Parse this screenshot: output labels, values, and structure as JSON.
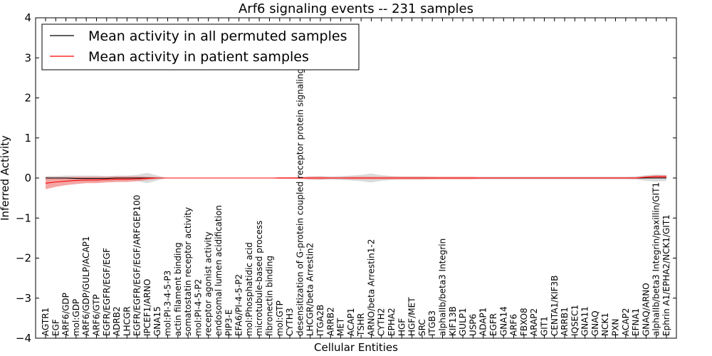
{
  "chart_data": {
    "type": "line",
    "title": "Arf6 signaling events -- 231 samples",
    "xlabel": "Cellular Entities",
    "ylabel": "Inferred Activity",
    "ylim": [
      -4,
      4
    ],
    "yticks": [
      "4",
      "3",
      "2",
      "1",
      "0",
      "−1",
      "−2",
      "−3",
      "−4"
    ],
    "grid": false,
    "legend_position": "top-left",
    "categories": [
      "AGTR1",
      "EGF",
      "ARF6/GDP",
      "mol:GDP",
      "ARF6/GDP/GULP/ACAP1",
      "ARF6/GTP",
      "EGFR/EGFR/EGF/EGF",
      "ADRB2",
      "LHCGR",
      "EGFR/EGFR/EGF/EGF/ARFGEP100",
      "IPCEF1/ARNO",
      "GNA15",
      "mol:PI-3-4-5-P3",
      "actin filament binding",
      "somatostatin receptor activity",
      "mol:PI-4-5-P2",
      "receptor agonist activity",
      "endosomal lumen acidification",
      "PIP3-E",
      "EFA6/PI-4-5-P2",
      "mol:Phosphatidic acid",
      "microtubule-based process",
      "fibronectin binding",
      "mol:GTP",
      "CYTH3",
      "desensitization of G-protein coupled receptor protein signaling pathway",
      "LHCGR/beta Arrestin2",
      "ITGA2B",
      "ARRB2",
      "MET",
      "ACAP1",
      "TSHR",
      "ARNO/beta Arrestin1-2",
      "CYTH2",
      "EPHA2",
      "HGF",
      "HGF/MET",
      "SRC",
      "ITGB3",
      "alphaIIb/beta3 Integrin",
      "KIF13B",
      "GULP1",
      "USP6",
      "ADAP1",
      "EGFR",
      "GNA14",
      "ARF6",
      "FBXO8",
      "ARAP2",
      "GIT1",
      "CENTA1/KIF3B",
      "ARRB1",
      "IQSEC1",
      "GNA11",
      "GNAQ",
      "NCK1",
      "PXN",
      "ACAP2",
      "EFNA1",
      "GNAQ/ARNO",
      "alphaIIb/beta3 Integrin/paxillin/GIT1",
      "Ephrin A1/EPHA2/NCK1/GIT1"
    ],
    "series": [
      {
        "name": "Mean activity in all permuted samples",
        "color": "#000000",
        "band_color": "#b0b0b0",
        "values": [
          0.0,
          0.0,
          0.0,
          -0.01,
          -0.01,
          -0.01,
          -0.01,
          0.0,
          0.0,
          0.0,
          0.0,
          0.0,
          0.0,
          0.0,
          0.0,
          0.0,
          0.0,
          0.0,
          0.0,
          0.0,
          0.0,
          0.0,
          0.0,
          0.0,
          0.0,
          0.0,
          0.0,
          0.0,
          0.0,
          0.0,
          0.0,
          0.0,
          0.0,
          0.0,
          0.0,
          0.0,
          0.0,
          0.0,
          0.0,
          0.0,
          0.0,
          0.0,
          0.0,
          0.0,
          0.0,
          0.0,
          0.0,
          0.0,
          0.0,
          0.0,
          0.0,
          0.0,
          0.0,
          0.0,
          0.0,
          0.0,
          0.0,
          0.0,
          0.0,
          0.0,
          0.0,
          0.0
        ],
        "spread": [
          0.05,
          0.05,
          0.06,
          0.07,
          0.07,
          0.07,
          0.06,
          0.06,
          0.06,
          0.08,
          0.13,
          0.06,
          0.0,
          0.0,
          0.0,
          0.0,
          0.0,
          0.0,
          0.0,
          0.0,
          0.0,
          0.0,
          0.0,
          0.0,
          0.01,
          0.02,
          0.04,
          0.05,
          0.04,
          0.05,
          0.06,
          0.08,
          0.11,
          0.07,
          0.05,
          0.04,
          0.04,
          0.04,
          0.03,
          0.02,
          0.02,
          0.02,
          0.02,
          0.03,
          0.03,
          0.03,
          0.03,
          0.03,
          0.03,
          0.03,
          0.03,
          0.03,
          0.03,
          0.03,
          0.03,
          0.03,
          0.03,
          0.03,
          0.04,
          0.07,
          0.09,
          0.07
        ]
      },
      {
        "name": "Mean activity in patient samples",
        "color": "#ff0000",
        "band_color": "#f08080",
        "values": [
          -0.13,
          -0.1,
          -0.08,
          -0.06,
          -0.05,
          -0.05,
          -0.04,
          -0.03,
          -0.03,
          -0.02,
          -0.01,
          0.0,
          0.0,
          0.0,
          0.0,
          0.0,
          0.0,
          0.0,
          0.0,
          0.0,
          0.0,
          0.0,
          0.0,
          0.0,
          0.0,
          0.0,
          0.0,
          0.0,
          0.0,
          0.0,
          0.0,
          0.0,
          0.0,
          0.0,
          0.0,
          0.0,
          0.0,
          0.0,
          0.0,
          0.0,
          0.0,
          0.0,
          0.0,
          0.0,
          0.0,
          0.0,
          0.0,
          0.0,
          0.0,
          0.0,
          0.0,
          0.0,
          0.0,
          0.0,
          0.0,
          0.0,
          0.0,
          0.0,
          0.0,
          0.02,
          0.03,
          0.03
        ],
        "spread": [
          0.15,
          0.12,
          0.1,
          0.09,
          0.08,
          0.08,
          0.07,
          0.07,
          0.07,
          0.06,
          0.04,
          0.02,
          0.0,
          0.0,
          0.0,
          0.0,
          0.0,
          0.0,
          0.0,
          0.0,
          0.0,
          0.0,
          0.0,
          0.02,
          0.02,
          0.02,
          0.03,
          0.03,
          0.02,
          0.02,
          0.03,
          0.03,
          0.03,
          0.03,
          0.03,
          0.03,
          0.03,
          0.03,
          0.03,
          0.03,
          0.03,
          0.03,
          0.03,
          0.02,
          0.02,
          0.02,
          0.02,
          0.02,
          0.02,
          0.02,
          0.02,
          0.02,
          0.02,
          0.02,
          0.02,
          0.02,
          0.02,
          0.02,
          0.02,
          0.03,
          0.04,
          0.04
        ]
      }
    ]
  }
}
